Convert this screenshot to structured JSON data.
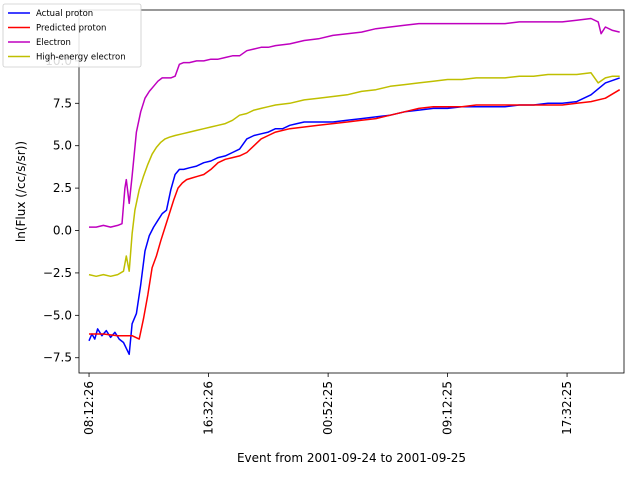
{
  "chart_data": {
    "type": "line",
    "title": "",
    "xlabel": "Event from 2001-09-24 to 2001-09-25",
    "ylabel": "ln(Flux (/cc/s/sr))",
    "x_unit": "hours since 08:12:26",
    "xlim": [
      -0.7,
      37.3
    ],
    "ylim": [
      -8.4,
      13.0
    ],
    "xticks": [
      {
        "x": 0.0,
        "label": "08:12:26"
      },
      {
        "x": 8.33,
        "label": "16:32:26"
      },
      {
        "x": 16.67,
        "label": "00:52:25"
      },
      {
        "x": 25.0,
        "label": "09:12:25"
      },
      {
        "x": 33.33,
        "label": "17:32:25"
      }
    ],
    "yticks": [
      {
        "y": -7.5,
        "label": "−7.5"
      },
      {
        "y": -5.0,
        "label": "−5.0"
      },
      {
        "y": -2.5,
        "label": "−2.5"
      },
      {
        "y": 0.0,
        "label": "0.0"
      },
      {
        "y": 2.5,
        "label": "2.5"
      },
      {
        "y": 5.0,
        "label": "5.0"
      },
      {
        "y": 7.5,
        "label": "7.5"
      },
      {
        "y": 10.0,
        "label": "10.0"
      }
    ],
    "grid": false,
    "legend_position": "top-left",
    "series": [
      {
        "name": "Actual proton",
        "color": "#0000ff",
        "points": [
          [
            0,
            -6.5
          ],
          [
            0.2,
            -6.1
          ],
          [
            0.4,
            -6.4
          ],
          [
            0.6,
            -5.8
          ],
          [
            0.9,
            -6.2
          ],
          [
            1.2,
            -5.9
          ],
          [
            1.5,
            -6.3
          ],
          [
            1.8,
            -6.0
          ],
          [
            2.1,
            -6.4
          ],
          [
            2.4,
            -6.6
          ],
          [
            2.8,
            -7.3
          ],
          [
            3.0,
            -5.5
          ],
          [
            3.3,
            -4.9
          ],
          [
            3.6,
            -3.2
          ],
          [
            3.9,
            -1.2
          ],
          [
            4.2,
            -0.3
          ],
          [
            4.5,
            0.2
          ],
          [
            4.8,
            0.6
          ],
          [
            5.1,
            1.0
          ],
          [
            5.4,
            1.2
          ],
          [
            5.7,
            2.4
          ],
          [
            6.0,
            3.3
          ],
          [
            6.3,
            3.6
          ],
          [
            6.6,
            3.6
          ],
          [
            7.0,
            3.7
          ],
          [
            7.5,
            3.8
          ],
          [
            8.0,
            4.0
          ],
          [
            8.5,
            4.1
          ],
          [
            9.0,
            4.3
          ],
          [
            9.5,
            4.4
          ],
          [
            10.0,
            4.6
          ],
          [
            10.5,
            4.8
          ],
          [
            11.0,
            5.4
          ],
          [
            11.5,
            5.6
          ],
          [
            12.0,
            5.7
          ],
          [
            12.5,
            5.8
          ],
          [
            13.0,
            6.0
          ],
          [
            13.5,
            6.0
          ],
          [
            14.0,
            6.2
          ],
          [
            14.5,
            6.3
          ],
          [
            15.0,
            6.4
          ],
          [
            16.0,
            6.4
          ],
          [
            17.0,
            6.4
          ],
          [
            18.0,
            6.5
          ],
          [
            19.0,
            6.6
          ],
          [
            20.0,
            6.7
          ],
          [
            21.0,
            6.8
          ],
          [
            22.0,
            7.0
          ],
          [
            23.0,
            7.1
          ],
          [
            24.0,
            7.2
          ],
          [
            25.0,
            7.2
          ],
          [
            26.0,
            7.3
          ],
          [
            27.0,
            7.3
          ],
          [
            28.0,
            7.3
          ],
          [
            29.0,
            7.3
          ],
          [
            30.0,
            7.4
          ],
          [
            31.0,
            7.4
          ],
          [
            32.0,
            7.5
          ],
          [
            33.0,
            7.5
          ],
          [
            34.0,
            7.6
          ],
          [
            35.0,
            8.0
          ],
          [
            36.0,
            8.7
          ],
          [
            37.0,
            9.0
          ]
        ]
      },
      {
        "name": "Predicted proton",
        "color": "#ff0000",
        "points": [
          [
            0,
            -6.1
          ],
          [
            1.0,
            -6.1
          ],
          [
            2.0,
            -6.2
          ],
          [
            3.0,
            -6.2
          ],
          [
            3.5,
            -6.4
          ],
          [
            3.8,
            -5.2
          ],
          [
            4.1,
            -3.8
          ],
          [
            4.4,
            -2.2
          ],
          [
            4.7,
            -1.5
          ],
          [
            5.0,
            -0.6
          ],
          [
            5.3,
            0.2
          ],
          [
            5.6,
            1.0
          ],
          [
            5.9,
            1.8
          ],
          [
            6.2,
            2.5
          ],
          [
            6.5,
            2.8
          ],
          [
            6.8,
            3.0
          ],
          [
            7.2,
            3.1
          ],
          [
            7.6,
            3.2
          ],
          [
            8.0,
            3.3
          ],
          [
            8.5,
            3.6
          ],
          [
            9.0,
            4.0
          ],
          [
            9.5,
            4.2
          ],
          [
            10.0,
            4.3
          ],
          [
            10.5,
            4.4
          ],
          [
            11.0,
            4.6
          ],
          [
            11.5,
            5.0
          ],
          [
            12.0,
            5.4
          ],
          [
            12.5,
            5.6
          ],
          [
            13.0,
            5.8
          ],
          [
            14.0,
            6.0
          ],
          [
            15.0,
            6.1
          ],
          [
            16.0,
            6.2
          ],
          [
            17.0,
            6.3
          ],
          [
            18.0,
            6.4
          ],
          [
            19.0,
            6.5
          ],
          [
            20.0,
            6.6
          ],
          [
            21.0,
            6.8
          ],
          [
            22.0,
            7.0
          ],
          [
            23.0,
            7.2
          ],
          [
            24.0,
            7.3
          ],
          [
            25.0,
            7.3
          ],
          [
            26.0,
            7.3
          ],
          [
            27.0,
            7.4
          ],
          [
            28.0,
            7.4
          ],
          [
            29.0,
            7.4
          ],
          [
            30.0,
            7.4
          ],
          [
            31.0,
            7.4
          ],
          [
            32.0,
            7.4
          ],
          [
            33.0,
            7.4
          ],
          [
            34.0,
            7.5
          ],
          [
            35.0,
            7.6
          ],
          [
            36.0,
            7.8
          ],
          [
            37.0,
            8.3
          ]
        ]
      },
      {
        "name": "Electron",
        "color": "#bf00bf",
        "points": [
          [
            0,
            0.2
          ],
          [
            0.5,
            0.2
          ],
          [
            1.0,
            0.3
          ],
          [
            1.5,
            0.2
          ],
          [
            2.0,
            0.3
          ],
          [
            2.3,
            0.4
          ],
          [
            2.5,
            2.5
          ],
          [
            2.6,
            3.0
          ],
          [
            2.8,
            1.6
          ],
          [
            3.0,
            3.2
          ],
          [
            3.3,
            5.8
          ],
          [
            3.6,
            7.0
          ],
          [
            3.9,
            7.8
          ],
          [
            4.2,
            8.2
          ],
          [
            4.5,
            8.5
          ],
          [
            4.8,
            8.8
          ],
          [
            5.1,
            9.0
          ],
          [
            5.4,
            9.0
          ],
          [
            5.7,
            9.0
          ],
          [
            6.0,
            9.1
          ],
          [
            6.3,
            9.8
          ],
          [
            6.6,
            9.9
          ],
          [
            7.0,
            9.9
          ],
          [
            7.5,
            10.0
          ],
          [
            8.0,
            10.0
          ],
          [
            8.5,
            10.1
          ],
          [
            9.0,
            10.1
          ],
          [
            9.5,
            10.2
          ],
          [
            10.0,
            10.3
          ],
          [
            10.5,
            10.3
          ],
          [
            11.0,
            10.6
          ],
          [
            11.5,
            10.7
          ],
          [
            12.0,
            10.8
          ],
          [
            12.5,
            10.8
          ],
          [
            13.0,
            10.9
          ],
          [
            14.0,
            11.0
          ],
          [
            15.0,
            11.2
          ],
          [
            16.0,
            11.3
          ],
          [
            17.0,
            11.5
          ],
          [
            18.0,
            11.6
          ],
          [
            19.0,
            11.7
          ],
          [
            20.0,
            11.9
          ],
          [
            21.0,
            12.0
          ],
          [
            22.0,
            12.1
          ],
          [
            23.0,
            12.2
          ],
          [
            24.0,
            12.2
          ],
          [
            25.0,
            12.2
          ],
          [
            26.0,
            12.2
          ],
          [
            27.0,
            12.2
          ],
          [
            28.0,
            12.2
          ],
          [
            29.0,
            12.2
          ],
          [
            30.0,
            12.3
          ],
          [
            31.0,
            12.3
          ],
          [
            32.0,
            12.3
          ],
          [
            33.0,
            12.3
          ],
          [
            34.0,
            12.4
          ],
          [
            35.0,
            12.5
          ],
          [
            35.5,
            12.3
          ],
          [
            35.7,
            11.6
          ],
          [
            36.0,
            12.0
          ],
          [
            36.5,
            11.8
          ],
          [
            37.0,
            11.7
          ]
        ]
      },
      {
        "name": "High-energy electron",
        "color": "#bfbf00",
        "points": [
          [
            0,
            -2.6
          ],
          [
            0.5,
            -2.7
          ],
          [
            1.0,
            -2.6
          ],
          [
            1.5,
            -2.7
          ],
          [
            2.0,
            -2.6
          ],
          [
            2.4,
            -2.4
          ],
          [
            2.6,
            -1.5
          ],
          [
            2.8,
            -2.4
          ],
          [
            3.0,
            -0.2
          ],
          [
            3.2,
            1.2
          ],
          [
            3.5,
            2.4
          ],
          [
            3.8,
            3.2
          ],
          [
            4.1,
            3.9
          ],
          [
            4.4,
            4.5
          ],
          [
            4.7,
            4.9
          ],
          [
            5.0,
            5.2
          ],
          [
            5.3,
            5.4
          ],
          [
            5.6,
            5.5
          ],
          [
            6.0,
            5.6
          ],
          [
            6.5,
            5.7
          ],
          [
            7.0,
            5.8
          ],
          [
            7.5,
            5.9
          ],
          [
            8.0,
            6.0
          ],
          [
            8.5,
            6.1
          ],
          [
            9.0,
            6.2
          ],
          [
            9.5,
            6.3
          ],
          [
            10.0,
            6.5
          ],
          [
            10.5,
            6.8
          ],
          [
            11.0,
            6.9
          ],
          [
            11.5,
            7.1
          ],
          [
            12.0,
            7.2
          ],
          [
            12.5,
            7.3
          ],
          [
            13.0,
            7.4
          ],
          [
            14.0,
            7.5
          ],
          [
            15.0,
            7.7
          ],
          [
            16.0,
            7.8
          ],
          [
            17.0,
            7.9
          ],
          [
            18.0,
            8.0
          ],
          [
            19.0,
            8.2
          ],
          [
            20.0,
            8.3
          ],
          [
            21.0,
            8.5
          ],
          [
            22.0,
            8.6
          ],
          [
            23.0,
            8.7
          ],
          [
            24.0,
            8.8
          ],
          [
            25.0,
            8.9
          ],
          [
            26.0,
            8.9
          ],
          [
            27.0,
            9.0
          ],
          [
            28.0,
            9.0
          ],
          [
            29.0,
            9.0
          ],
          [
            30.0,
            9.1
          ],
          [
            31.0,
            9.1
          ],
          [
            32.0,
            9.2
          ],
          [
            33.0,
            9.2
          ],
          [
            34.0,
            9.2
          ],
          [
            35.0,
            9.3
          ],
          [
            35.5,
            8.7
          ],
          [
            36.0,
            9.0
          ],
          [
            36.5,
            9.1
          ],
          [
            37.0,
            9.1
          ]
        ]
      }
    ]
  }
}
